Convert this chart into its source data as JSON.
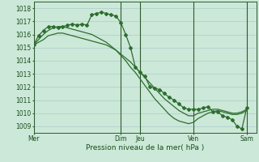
{
  "bg_color": "#cce8d8",
  "grid_color": "#aacccc",
  "line_color": "#2d6e2d",
  "tick_color": "#1a4d1a",
  "xlabel": "Pression niveau de la mer( hPa )",
  "xlabel_color": "#1a4d1a",
  "ylim": [
    1008.5,
    1018.5
  ],
  "yticks": [
    1009,
    1010,
    1011,
    1012,
    1013,
    1014,
    1015,
    1016,
    1017,
    1018
  ],
  "day_labels": [
    "Mer",
    "Dim",
    "Jeu",
    "Ven",
    "Sam"
  ],
  "day_positions": [
    0,
    18,
    22,
    33,
    44
  ],
  "xlim_lo": 0,
  "xlim_hi": 46,
  "series_lo_x": [
    0,
    1,
    2,
    3,
    4,
    5,
    6,
    7,
    8,
    9,
    10,
    11,
    12,
    13,
    14,
    15,
    16,
    17,
    18,
    19,
    20,
    21,
    22,
    23,
    24,
    25,
    26,
    27,
    28,
    29,
    30,
    31,
    32,
    33,
    34,
    35,
    36,
    37,
    38,
    39,
    40,
    41,
    42,
    43,
    44
  ],
  "series_lo_y": [
    1015.2,
    1015.4,
    1015.6,
    1015.9,
    1016.0,
    1016.1,
    1016.1,
    1016.0,
    1015.9,
    1015.8,
    1015.7,
    1015.6,
    1015.5,
    1015.4,
    1015.3,
    1015.2,
    1015.0,
    1014.8,
    1014.5,
    1014.2,
    1013.9,
    1013.5,
    1013.1,
    1012.7,
    1012.3,
    1011.9,
    1011.5,
    1011.1,
    1010.8,
    1010.5,
    1010.2,
    1010.0,
    1009.8,
    1009.8,
    1010.0,
    1010.1,
    1010.2,
    1010.3,
    1010.3,
    1010.2,
    1010.1,
    1010.0,
    1010.0,
    1010.1,
    1010.3
  ],
  "series_hi_x": [
    0,
    1,
    2,
    3,
    4,
    5,
    6,
    7,
    8,
    9,
    10,
    11,
    12,
    13,
    14,
    15,
    16,
    17,
    18,
    19,
    20,
    21,
    22,
    23,
    24,
    25,
    26,
    27,
    28,
    29,
    30,
    31,
    32,
    33,
    34,
    35,
    36,
    37,
    38,
    39,
    40,
    41,
    42,
    43,
    44
  ],
  "series_hi_y": [
    1015.2,
    1015.6,
    1016.0,
    1016.3,
    1016.5,
    1016.6,
    1016.6,
    1016.5,
    1016.4,
    1016.3,
    1016.2,
    1016.1,
    1016.0,
    1015.8,
    1015.6,
    1015.4,
    1015.1,
    1014.8,
    1014.4,
    1014.0,
    1013.5,
    1013.1,
    1012.6,
    1012.1,
    1011.6,
    1011.1,
    1010.7,
    1010.3,
    1009.9,
    1009.6,
    1009.4,
    1009.3,
    1009.2,
    1009.3,
    1009.6,
    1009.8,
    1010.0,
    1010.1,
    1010.2,
    1010.1,
    1010.0,
    1009.9,
    1009.9,
    1010.0,
    1010.2
  ],
  "series_obs_x": [
    0,
    1,
    2,
    3,
    4,
    5,
    6,
    7,
    8,
    9,
    10,
    11,
    12,
    13,
    14,
    15,
    16,
    17,
    18,
    19,
    20,
    21,
    22,
    23,
    24,
    25,
    26,
    27,
    28,
    29,
    30,
    31,
    32,
    33,
    34,
    35,
    36,
    37,
    38,
    39,
    40,
    41,
    42,
    43,
    44
  ],
  "series_obs_y": [
    1015.2,
    1015.9,
    1016.3,
    1016.6,
    1016.6,
    1016.5,
    1016.6,
    1016.7,
    1016.8,
    1016.7,
    1016.8,
    1016.7,
    1017.5,
    1017.6,
    1017.7,
    1017.6,
    1017.5,
    1017.4,
    1016.9,
    1016.0,
    1015.0,
    1013.5,
    1013.1,
    1012.8,
    1012.0,
    1011.9,
    1011.8,
    1011.5,
    1011.2,
    1011.0,
    1010.7,
    1010.4,
    1010.3,
    1010.3,
    1010.3,
    1010.4,
    1010.5,
    1010.1,
    1010.1,
    1009.8,
    1009.7,
    1009.5,
    1009.0,
    1008.8,
    1010.4
  ]
}
